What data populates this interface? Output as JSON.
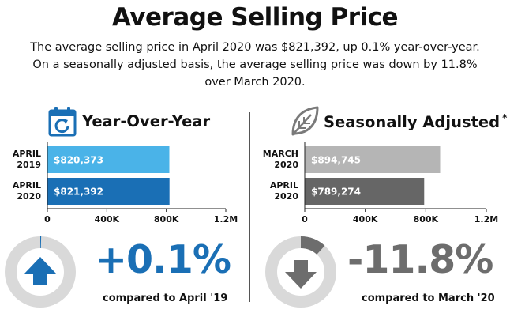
{
  "title": "Average Selling Price",
  "subtitle_lines": [
    "The average selling price in April 2020 was $821,392, up 0.1% year-over-year.",
    "On a seasonally adjusted basis, the average selling price was down by 11.8%",
    "over March 2020."
  ],
  "colors": {
    "yoy_2019": "#4ab3e8",
    "yoy_2020": "#1a6fb5",
    "sa_march": "#b5b5b5",
    "sa_april": "#666666",
    "blue_dark": "#1a6fb5",
    "gray_dark": "#6d6d6d",
    "ring": "#d9d9d9"
  },
  "icons": {
    "yoy": "calendar-refresh-icon",
    "sa": "leaf-icon",
    "yoy_change": "arrow-up-icon",
    "sa_change": "arrow-down-icon"
  },
  "left": {
    "heading": "Year-Over-Year",
    "change_text": "+0.1%",
    "compare_text": "compared to April '19",
    "change_pct": 0.1
  },
  "right": {
    "heading": "Seasonally Adjusted",
    "footnote_mark": "*",
    "change_text": "-11.8%",
    "compare_text": "compared to March '20",
    "change_pct": -11.8
  },
  "chart_data": [
    {
      "type": "bar",
      "orientation": "horizontal",
      "categories": [
        [
          "APRIL",
          "2019"
        ],
        [
          "APRIL",
          "2020"
        ]
      ],
      "values": [
        820373,
        821392
      ],
      "value_labels": [
        "$820,373",
        "$821,392"
      ],
      "xlim": [
        0,
        1200000
      ],
      "xticks": [
        0,
        400000,
        800000,
        1200000
      ],
      "xtick_labels": [
        "0",
        "400K",
        "800K",
        "1.2M"
      ],
      "grid": false
    },
    {
      "type": "bar",
      "orientation": "horizontal",
      "categories": [
        [
          "MARCH",
          "2020"
        ],
        [
          "APRIL",
          "2020"
        ]
      ],
      "values": [
        894745,
        789274
      ],
      "value_labels": [
        "$894,745",
        "$789,274"
      ],
      "xlim": [
        0,
        1200000
      ],
      "xticks": [
        0,
        400000,
        800000,
        1200000
      ],
      "xtick_labels": [
        "0",
        "400K",
        "800K",
        "1.2M"
      ],
      "grid": false
    }
  ]
}
